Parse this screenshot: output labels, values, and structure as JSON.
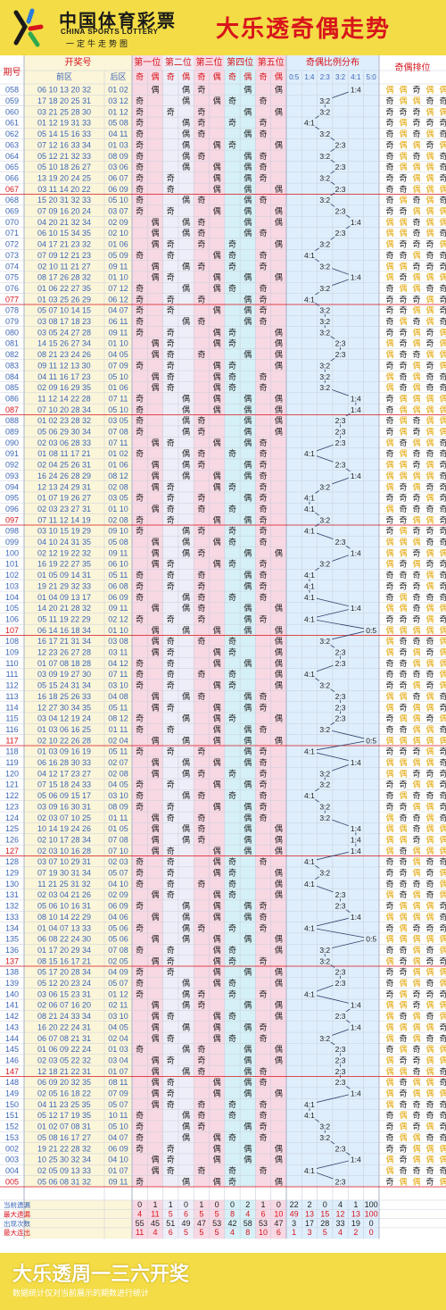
{
  "header": {
    "brand_cn": "中国体育彩票",
    "brand_en": "CHINA SPORTS LOTTERY",
    "brand_tag": "一定牛走势图",
    "title": "大乐透奇偶走势"
  },
  "footer": {
    "title": "大乐透周一三六开奖",
    "note": "数据统计仅对当前展示的期数进行统计"
  },
  "colors": {
    "front_bg": "#fbf5d9",
    "p1_bg": "#f8d8e3",
    "p2_bg": "#eeeef8",
    "p3_bg": "#f8d8e3",
    "p4_bg": "#d5f0f6",
    "p5_bg": "#f8d8e3",
    "ratio_bg": "#dfeefc",
    "period_blue": "#3b66b8",
    "period_red": "#d8141b",
    "odd_color": "#222222",
    "even_color": "#e3a300",
    "stats_red": "#d8141b"
  },
  "chart_data": {
    "type": "table",
    "columns": {
      "period": "期号",
      "draw": "开奖号",
      "front": "前区",
      "back": "后区",
      "positions": [
        "第一位",
        "第二位",
        "第三位",
        "第四位",
        "第五位"
      ],
      "odd": "奇",
      "even": "偶",
      "ratio_group": "奇偶比例分布",
      "ratio_labels": [
        "0:5",
        "1:4",
        "2:3",
        "3:2",
        "4:1",
        "5:0"
      ],
      "order": "奇偶排位"
    },
    "rows": [
      {
        "period": "058",
        "front": "06 10 13 20 32",
        "back": "01 02"
      },
      {
        "period": "059",
        "front": "17 18 20 25 31",
        "back": "03 12"
      },
      {
        "period": "060",
        "front": "03 21 25 28 30",
        "back": "01 12"
      },
      {
        "period": "061",
        "front": "01 12 19 31 33",
        "back": "05 08"
      },
      {
        "period": "062",
        "front": "05 14 15 16 33",
        "back": "04 11"
      },
      {
        "period": "063",
        "front": "07 12 16 33 34",
        "back": "01 03"
      },
      {
        "period": "064",
        "front": "05 12 21 32 33",
        "back": "08 09"
      },
      {
        "period": "065",
        "front": "05 10 18 26 27",
        "back": "03 06"
      },
      {
        "period": "066",
        "front": "13 19 20 24 25",
        "back": "06 07"
      },
      {
        "period": "067",
        "front": "03 11 14 20 22",
        "back": "06 09"
      },
      {
        "period": "068",
        "front": "15 20 31 32 33",
        "back": "05 10"
      },
      {
        "period": "069",
        "front": "07 09 16 20 24",
        "back": "03 07"
      },
      {
        "period": "070",
        "front": "04 20 21 32 34",
        "back": "02 09"
      },
      {
        "period": "071",
        "front": "06 10 15 34 35",
        "back": "02 10"
      },
      {
        "period": "072",
        "front": "04 17 21 23 32",
        "back": "01 06"
      },
      {
        "period": "073",
        "front": "07 09 12 21 23",
        "back": "05 09"
      },
      {
        "period": "074",
        "front": "02 10 11 21 27",
        "back": "09 11"
      },
      {
        "period": "075",
        "front": "08 17 26 28 32",
        "back": "01 10"
      },
      {
        "period": "076",
        "front": "01 06 22 27 35",
        "back": "07 12"
      },
      {
        "period": "077",
        "front": "01 03 25 26 29",
        "back": "06 12"
      },
      {
        "period": "078",
        "front": "05 07 10 14 15",
        "back": "04 07"
      },
      {
        "period": "079",
        "front": "03 08 17 18 23",
        "back": "06 11"
      },
      {
        "period": "080",
        "front": "03 05 24 27 28",
        "back": "09 11"
      },
      {
        "period": "081",
        "front": "14 15 26 27 34",
        "back": "01 10"
      },
      {
        "period": "082",
        "front": "08 21 23 24 26",
        "back": "04 05"
      },
      {
        "period": "083",
        "front": "09 11 12 13 30",
        "back": "07 09"
      },
      {
        "period": "084",
        "front": "04 11 16 17 23",
        "back": "05 10"
      },
      {
        "period": "085",
        "front": "02 09 16 29 35",
        "back": "01 06"
      },
      {
        "period": "086",
        "front": "11 12 14 22 28",
        "back": "07 11"
      },
      {
        "period": "087",
        "front": "07 10 20 28 34",
        "back": "05 10"
      },
      {
        "period": "088",
        "front": "01 02 23 28 32",
        "back": "03 05"
      },
      {
        "period": "089",
        "front": "05 06 29 30 34",
        "back": "07 08"
      },
      {
        "period": "090",
        "front": "02 03 06 28 33",
        "back": "07 11"
      },
      {
        "period": "091",
        "front": "01 08 11 17 21",
        "back": "01 02"
      },
      {
        "period": "092",
        "front": "02 04 25 26 31",
        "back": "01 06"
      },
      {
        "period": "093",
        "front": "16 24 26 28 29",
        "back": "08 12"
      },
      {
        "period": "094",
        "front": "12 13 24 29 31",
        "back": "02 08"
      },
      {
        "period": "095",
        "front": "01 07 19 26 27",
        "back": "03 05"
      },
      {
        "period": "096",
        "front": "02 03 23 27 31",
        "back": "01 10"
      },
      {
        "period": "097",
        "front": "07 11 12 14 19",
        "back": "02 08"
      },
      {
        "period": "098",
        "front": "03 10 15 19 29",
        "back": "09 10"
      },
      {
        "period": "099",
        "front": "04 10 24 31 35",
        "back": "05 08"
      },
      {
        "period": "100",
        "front": "02 12 19 22 32",
        "back": "09 11"
      },
      {
        "period": "101",
        "front": "16 19 22 27 35",
        "back": "06 10"
      },
      {
        "period": "102",
        "front": "01 05 09 14 31",
        "back": "05 11"
      },
      {
        "period": "103",
        "front": "19 21 29 32 33",
        "back": "06 08"
      },
      {
        "period": "104",
        "front": "01 04 09 13 17",
        "back": "06 09"
      },
      {
        "period": "105",
        "front": "14 20 21 28 32",
        "back": "09 11"
      },
      {
        "period": "106",
        "front": "05 11 19 22 29",
        "back": "02 12"
      },
      {
        "period": "107",
        "front": "06 14 16 18 34",
        "back": "01 10"
      },
      {
        "period": "108",
        "front": "16 17 21 31 34",
        "back": "03 08"
      },
      {
        "period": "109",
        "front": "12 23 26 27 28",
        "back": "03 11"
      },
      {
        "period": "110",
        "front": "01 07 08 18 28",
        "back": "04 12"
      },
      {
        "period": "111",
        "front": "03 09 19 27 30",
        "back": "07 11"
      },
      {
        "period": "112",
        "front": "05 15 24 31 34",
        "back": "03 10"
      },
      {
        "period": "113",
        "front": "16 18 25 26 33",
        "back": "04 08"
      },
      {
        "period": "114",
        "front": "12 27 30 34 35",
        "back": "05 11"
      },
      {
        "period": "115",
        "front": "03 04 12 19 24",
        "back": "08 12"
      },
      {
        "period": "116",
        "front": "01 03 06 16 25",
        "back": "01 11"
      },
      {
        "period": "117",
        "front": "02 10 22 26 28",
        "back": "02 04"
      },
      {
        "period": "118",
        "front": "01 03 09 16 19",
        "back": "05 11"
      },
      {
        "period": "119",
        "front": "06 16 28 30 33",
        "back": "02 07"
      },
      {
        "period": "120",
        "front": "04 12 17 23 27",
        "back": "02 08"
      },
      {
        "period": "121",
        "front": "07 15 18 24 33",
        "back": "04 05"
      },
      {
        "period": "122",
        "front": "05 06 09 15 17",
        "back": "03 10"
      },
      {
        "period": "123",
        "front": "03 09 16 30 31",
        "back": "08 09"
      },
      {
        "period": "124",
        "front": "02 03 07 10 25",
        "back": "01 11"
      },
      {
        "period": "125",
        "front": "10 14 19 24 26",
        "back": "01 05"
      },
      {
        "period": "126",
        "front": "02 10 17 28 34",
        "back": "07 08"
      },
      {
        "period": "127",
        "front": "02 03 10 16 28",
        "back": "07 10"
      },
      {
        "period": "128",
        "front": "03 07 10 29 31",
        "back": "02 03"
      },
      {
        "period": "129",
        "front": "07 19 30 31 34",
        "back": "05 07"
      },
      {
        "period": "130",
        "front": "11 21 25 31 32",
        "back": "04 10"
      },
      {
        "period": "131",
        "front": "02 03 04 21 26",
        "back": "02 09"
      },
      {
        "period": "132",
        "front": "05 06 10 16 31",
        "back": "06 09"
      },
      {
        "period": "133",
        "front": "08 10 14 22 29",
        "back": "04 06"
      },
      {
        "period": "134",
        "front": "01 04 07 13 33",
        "back": "05 06"
      },
      {
        "period": "135",
        "front": "06 08 22 24 30",
        "back": "05 06"
      },
      {
        "period": "136",
        "front": "01 17 20 29 34",
        "back": "07 08"
      },
      {
        "period": "137",
        "front": "08 15 16 17 21",
        "back": "02 05"
      },
      {
        "period": "138",
        "front": "05 17 20 28 34",
        "back": "04 09"
      },
      {
        "period": "139",
        "front": "05 12 20 23 24",
        "back": "05 07"
      },
      {
        "period": "140",
        "front": "03 06 15 23 31",
        "back": "01 12"
      },
      {
        "period": "141",
        "front": "02 06 07 16 20",
        "back": "02 11"
      },
      {
        "period": "142",
        "front": "08 21 24 33 34",
        "back": "03 10"
      },
      {
        "period": "143",
        "front": "16 20 22 24 31",
        "back": "04 05"
      },
      {
        "period": "144",
        "front": "06 07 08 21 31",
        "back": "02 04"
      },
      {
        "period": "145",
        "front": "01 06 09 22 24",
        "back": "01 03"
      },
      {
        "period": "146",
        "front": "02 03 05 22 32",
        "back": "03 04"
      },
      {
        "period": "147",
        "front": "12 18 21 22 31",
        "back": "01 07"
      },
      {
        "period": "148",
        "front": "06 09 20 32 35",
        "back": "08 11"
      },
      {
        "period": "149",
        "front": "02 05 16 18 22",
        "back": "07 09"
      },
      {
        "period": "150",
        "front": "04 11 23 25 35",
        "back": "05 07"
      },
      {
        "period": "151",
        "front": "05 12 17 19 35",
        "back": "10 11"
      },
      {
        "period": "152",
        "front": "01 02 07 08 31",
        "back": "05 10"
      },
      {
        "period": "153",
        "front": "05 08 16 17 27",
        "back": "04 07"
      },
      {
        "period": "002",
        "front": "19 21 22 28 32",
        "back": "06 09"
      },
      {
        "period": "003",
        "front": "10 25 30 32 34",
        "back": "04 10"
      },
      {
        "period": "004",
        "front": "02 05 09 13 33",
        "back": "01 07"
      },
      {
        "period": "005",
        "front": "05 06 08 31 32",
        "back": "09 11"
      }
    ],
    "stats": {
      "labels": [
        "当前遗漏",
        "最大遗漏",
        "出现次数",
        "最大连出"
      ],
      "rows": [
        [
          "0",
          "1",
          "1",
          "0",
          "1",
          "0",
          "0",
          "2",
          "1",
          "0",
          "22",
          "2",
          "0",
          "4",
          "1",
          "100"
        ],
        [
          "4",
          "11",
          "5",
          "6",
          "5",
          "5",
          "8",
          "4",
          "6",
          "10",
          "49",
          "13",
          "15",
          "12",
          "13",
          "100"
        ],
        [
          "55",
          "45",
          "51",
          "49",
          "47",
          "53",
          "42",
          "58",
          "53",
          "47",
          "3",
          "17",
          "28",
          "33",
          "19",
          "0"
        ],
        [
          "11",
          "4",
          "6",
          "5",
          "5",
          "5",
          "4",
          "8",
          "10",
          "6",
          "1",
          "3",
          "5",
          "4",
          "2",
          "0"
        ]
      ]
    }
  }
}
